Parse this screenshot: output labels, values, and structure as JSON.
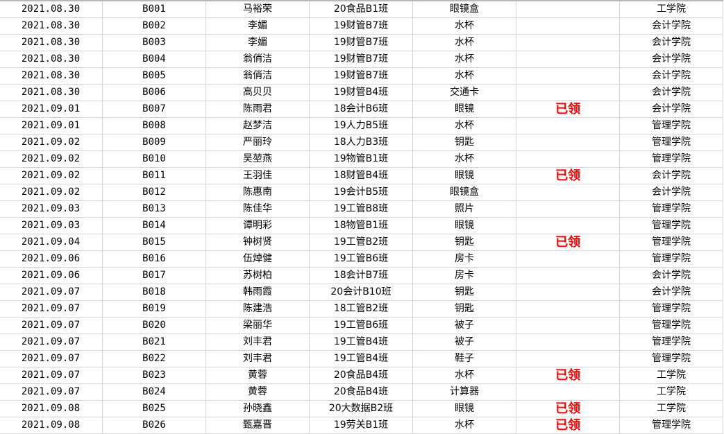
{
  "sheet": {
    "status_color": "#ff0000",
    "rows": [
      [
        "2021.08.30",
        "B001",
        "马裕荣",
        "20食品B1班",
        "眼镜盒",
        "",
        "工学院"
      ],
      [
        "2021.08.30",
        "B002",
        "李媚",
        "19财管B7班",
        "水杯",
        "",
        "会计学院"
      ],
      [
        "2021.08.30",
        "B003",
        "李媚",
        "19财管B7班",
        "水杯",
        "",
        "会计学院"
      ],
      [
        "2021.08.30",
        "B004",
        "翁俏洁",
        "19财管B7班",
        "水杯",
        "",
        "会计学院"
      ],
      [
        "2021.08.30",
        "B005",
        "翁俏洁",
        "19财管B7班",
        "水杯",
        "",
        "会计学院"
      ],
      [
        "2021.08.30",
        "B006",
        "高贝贝",
        "19财管B4班",
        "交通卡",
        "",
        "会计学院"
      ],
      [
        "2021.09.01",
        "B007",
        "陈雨君",
        "18会计B6班",
        "眼镜",
        "已领",
        "会计学院"
      ],
      [
        "2021.09.01",
        "B008",
        "赵梦洁",
        "19人力B5班",
        "水杯",
        "",
        "管理学院"
      ],
      [
        "2021.09.02",
        "B009",
        "严丽玲",
        "18人力B3班",
        "钥匙",
        "",
        "管理学院"
      ],
      [
        "2021.09.02",
        "B010",
        "吴堃燕",
        "19物管B1班",
        "水杯",
        "",
        "管理学院"
      ],
      [
        "2021.09.02",
        "B011",
        "王羽佳",
        "18财管B4班",
        "眼镜",
        "已领",
        "会计学院"
      ],
      [
        "2021.09.02",
        "B012",
        "陈惠南",
        "19会计B5班",
        "眼镜盒",
        "",
        "会计学院"
      ],
      [
        "2021.09.03",
        "B013",
        "陈佳华",
        "19工管B8班",
        "照片",
        "",
        "管理学院"
      ],
      [
        "2021.09.03",
        "B014",
        "谭明彩",
        "18物管B1班",
        "眼镜",
        "",
        "管理学院"
      ],
      [
        "2021.09.04",
        "B015",
        "钟树贤",
        "19工管B2班",
        "钥匙",
        "已领",
        "管理学院"
      ],
      [
        "2021.09.06",
        "B016",
        "伍焯健",
        "19工管B6班",
        "房卡",
        "",
        "管理学院"
      ],
      [
        "2021.09.06",
        "B017",
        "苏树柏",
        "18会计B7班",
        "房卡",
        "",
        "会计学院"
      ],
      [
        "2021.09.07",
        "B018",
        "韩雨霞",
        "20会计B10班",
        "钥匙",
        "",
        "会计学院"
      ],
      [
        "2021.09.07",
        "B019",
        "陈建浩",
        "18工管B2班",
        "钥匙",
        "",
        "管理学院"
      ],
      [
        "2021.09.07",
        "B020",
        "梁丽华",
        "19工管B6班",
        "被子",
        "",
        "管理学院"
      ],
      [
        "2021.09.07",
        "B021",
        "刘丰君",
        "19工管B4班",
        "被子",
        "",
        "管理学院"
      ],
      [
        "2021.09.07",
        "B022",
        "刘丰君",
        "19工管B4班",
        "鞋子",
        "",
        "管理学院"
      ],
      [
        "2021.09.07",
        "B023",
        "黄蓉",
        "20食品B4班",
        "水杯",
        "已领",
        "工学院"
      ],
      [
        "2021.09.07",
        "B024",
        "黄蓉",
        "20食品B4班",
        "计算器",
        "",
        "工学院"
      ],
      [
        "2021.09.08",
        "B025",
        "孙晓鑫",
        "20大数据B2班",
        "眼镜",
        "已领",
        "工学院"
      ],
      [
        "2021.09.08",
        "B026",
        "甄嘉晋",
        "19劳关B1班",
        "水杯",
        "已领",
        "管理学院"
      ]
    ]
  }
}
